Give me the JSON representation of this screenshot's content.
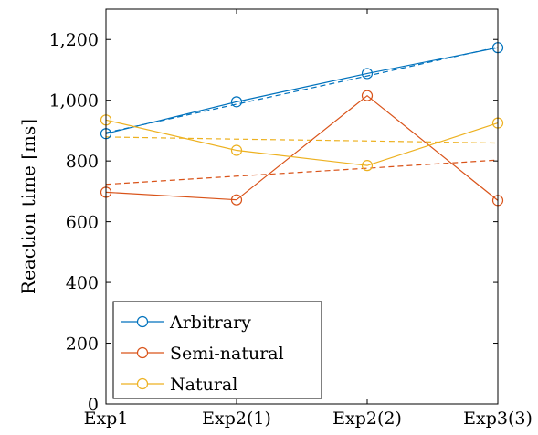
{
  "chart_data": {
    "type": "line",
    "title": "",
    "xlabel": "",
    "ylabel": "Reaction time [ms]",
    "categories": [
      "Exp1",
      "Exp2(1)",
      "Exp2(2)",
      "Exp3(3)"
    ],
    "ylim": [
      0,
      1300
    ],
    "yticks": [
      0,
      200,
      400,
      600,
      800,
      1000,
      1200
    ],
    "ytick_labels": [
      "0",
      "200",
      "400",
      "600",
      "800",
      "1,000",
      "1,200"
    ],
    "grid": false,
    "legend_position": "bottom-left",
    "series": [
      {
        "name": "Arbitrary",
        "color": "#0072BD",
        "values": [
          890,
          995,
          1088,
          1173
        ],
        "trend": [
          893,
          987,
          1080,
          1175
        ]
      },
      {
        "name": "Semi-natural",
        "color": "#D95319",
        "values": [
          697,
          672,
          1015,
          670
        ],
        "trend": [
          723,
          750,
          776,
          803
        ]
      },
      {
        "name": "Natural",
        "color": "#EDB120",
        "values": [
          935,
          835,
          785,
          925
        ],
        "trend": [
          879,
          872,
          866,
          859
        ]
      }
    ]
  }
}
